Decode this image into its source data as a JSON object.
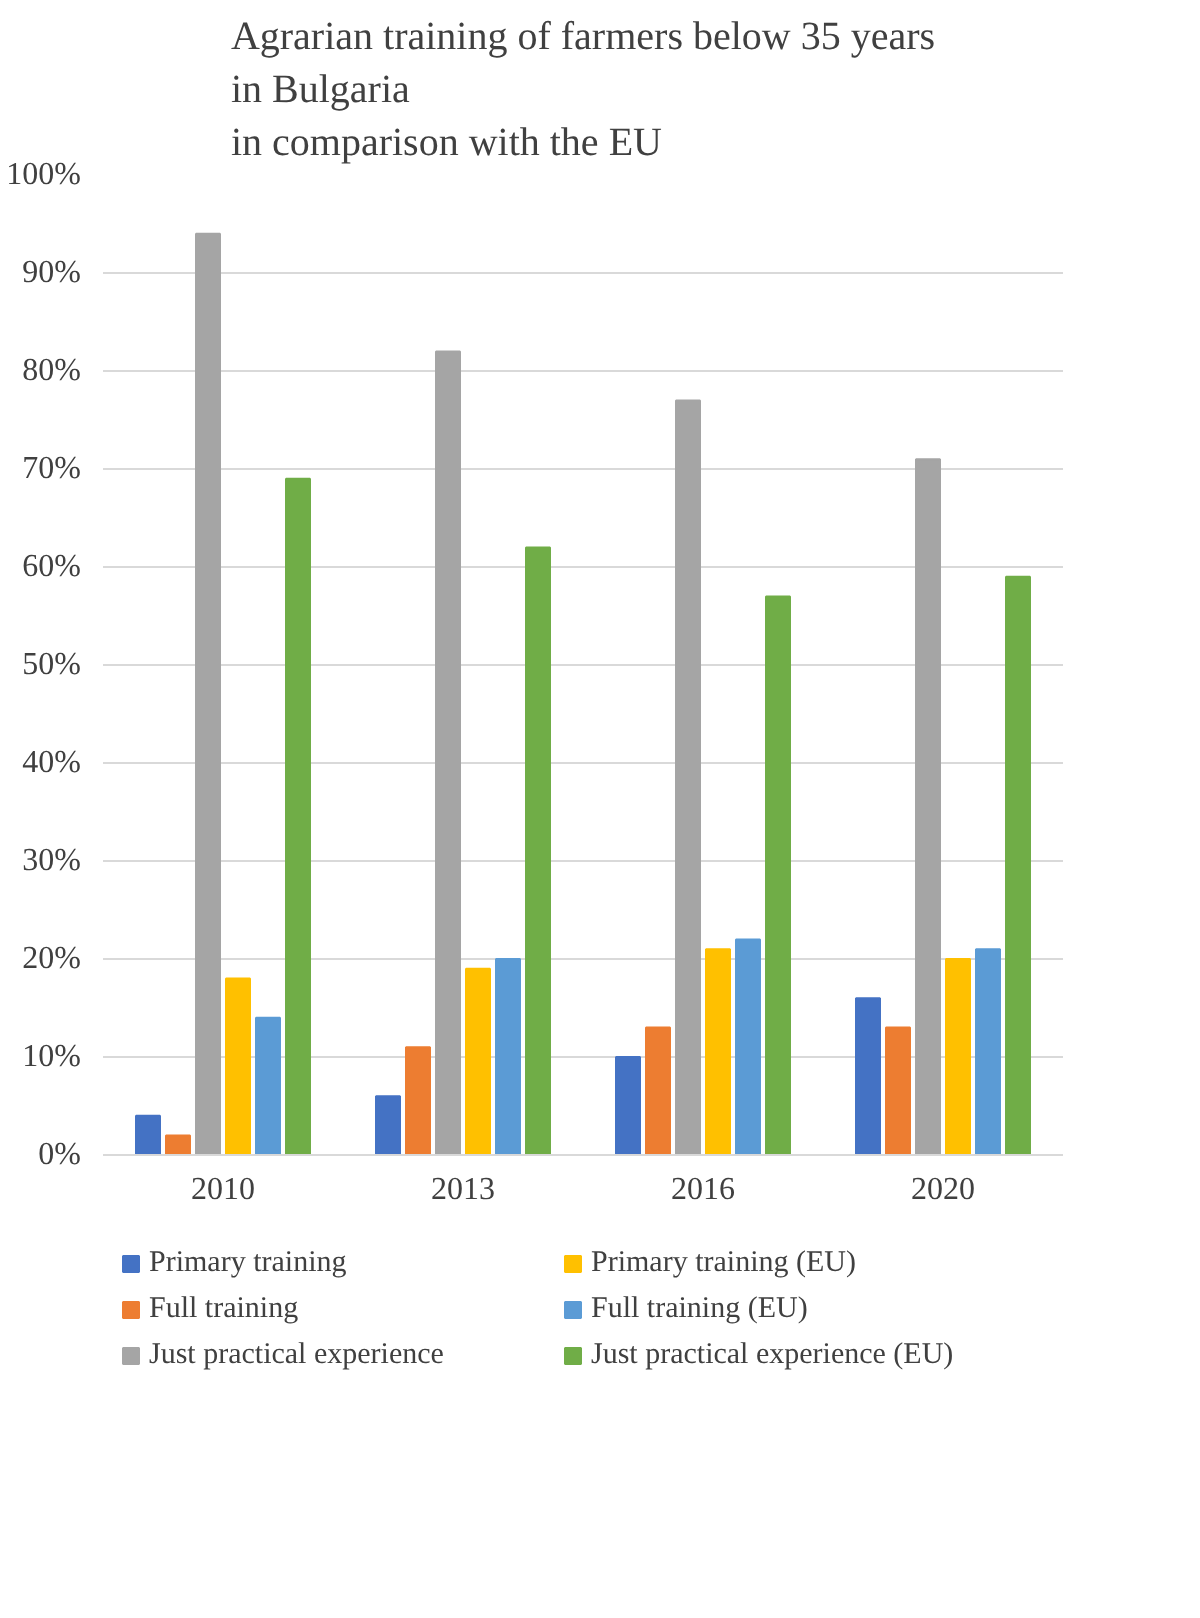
{
  "chart_data": {
    "type": "bar",
    "title": "Agrarian training of farmers below 35 years\nin Bulgaria\nin comparison with the EU",
    "categories": [
      "2010",
      "2013",
      "2016",
      "2020"
    ],
    "series": [
      {
        "name": "Primary training",
        "color": "#4472c4",
        "values": [
          4,
          6,
          10,
          16
        ]
      },
      {
        "name": "Full training",
        "color": "#ed7d31",
        "values": [
          2,
          11,
          13,
          13
        ]
      },
      {
        "name": "Just practical experience",
        "color": "#a5a5a5",
        "values": [
          94,
          82,
          77,
          71
        ]
      },
      {
        "name": "Primary training (EU)",
        "color": "#ffc000",
        "values": [
          18,
          19,
          21,
          20
        ]
      },
      {
        "name": "Full training (EU)",
        "color": "#5b9bd5",
        "values": [
          14,
          20,
          22,
          21
        ]
      },
      {
        "name": "Just practical experience (EU)",
        "color": "#70ad47",
        "values": [
          69,
          62,
          57,
          59
        ]
      }
    ],
    "ylim": [
      0,
      100
    ],
    "yticks": [
      {
        "value": 0,
        "label": "0%"
      },
      {
        "value": 10,
        "label": "10%"
      },
      {
        "value": 20,
        "label": "20%"
      },
      {
        "value": 30,
        "label": "30%"
      },
      {
        "value": 40,
        "label": "40%"
      },
      {
        "value": 50,
        "label": "50%"
      },
      {
        "value": 60,
        "label": "60%"
      },
      {
        "value": 70,
        "label": "70%"
      },
      {
        "value": 80,
        "label": "80%"
      },
      {
        "value": 90,
        "label": "90%"
      },
      {
        "value": 100,
        "label": "100%"
      }
    ],
    "grid": "y",
    "legend": "bottom"
  }
}
